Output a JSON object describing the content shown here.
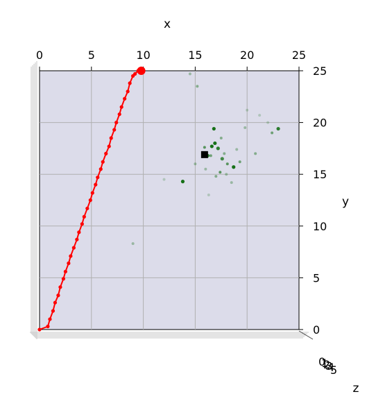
{
  "chart_data": {
    "type": "scatter",
    "projection": "3d",
    "view": "top-down (looking along z)",
    "xlabel": "x",
    "ylabel": "y",
    "zlabel": "z",
    "xlim": [
      0,
      25
    ],
    "ylim": [
      0,
      25
    ],
    "xticks": [
      0,
      5,
      10,
      15,
      20,
      25
    ],
    "yticks": [
      0,
      5,
      10,
      15,
      20,
      25
    ],
    "grid": true,
    "pane_color": "#dcdcea",
    "series": [
      {
        "type": "line",
        "color": "#ff0000",
        "x": [
          0.0,
          0.8,
          1.0,
          1.3,
          1.5,
          1.8,
          2.0,
          2.3,
          2.5,
          2.8,
          3.0,
          3.3,
          3.6,
          3.8,
          4.1,
          4.3,
          4.6,
          4.9,
          5.1,
          5.4,
          5.6,
          5.9,
          6.1,
          6.4,
          6.7,
          6.9,
          7.2,
          7.4,
          7.7,
          7.9,
          8.2,
          8.5,
          8.7,
          9.0,
          9.2,
          9.5
        ],
        "y": [
          0.0,
          0.3,
          1.0,
          1.8,
          2.6,
          3.3,
          4.1,
          4.9,
          5.6,
          6.4,
          7.1,
          7.9,
          8.7,
          9.4,
          10.2,
          10.9,
          11.7,
          12.5,
          13.2,
          14.0,
          14.7,
          15.5,
          16.2,
          17.0,
          17.7,
          18.5,
          19.3,
          20.0,
          20.8,
          21.5,
          22.3,
          23.0,
          23.8,
          24.5,
          24.7,
          25.0
        ]
      },
      {
        "type": "scatter",
        "color": "#006400",
        "x": [
          16.8,
          16.6,
          17.2,
          15.9,
          16.9,
          17.6,
          18.1,
          18.7,
          19.3,
          17.4,
          20.8,
          22.4,
          23.0,
          15.2,
          14.5,
          16.2,
          13.8,
          9.0,
          17.0,
          18.0,
          17.5,
          16.5,
          19.0,
          15.0,
          12.0,
          20.0,
          21.2,
          22.0,
          19.8,
          18.5,
          16.0,
          17.8,
          16.3
        ],
        "y": [
          19.4,
          17.7,
          17.5,
          17.6,
          18.0,
          16.5,
          16.0,
          15.7,
          16.2,
          15.2,
          17.0,
          19.0,
          19.4,
          23.5,
          24.7,
          16.8,
          14.3,
          8.3,
          14.8,
          15.0,
          18.5,
          16.8,
          17.4,
          16.0,
          14.5,
          21.2,
          20.7,
          20.0,
          19.5,
          14.2,
          15.5,
          17.0,
          13.0
        ],
        "alpha": [
          0.9,
          0.9,
          0.8,
          0.6,
          0.9,
          0.7,
          0.6,
          0.9,
          0.5,
          0.6,
          0.4,
          0.5,
          0.8,
          0.4,
          0.3,
          0.8,
          0.9,
          0.3,
          0.4,
          0.3,
          0.4,
          0.5,
          0.3,
          0.3,
          0.2,
          0.2,
          0.2,
          0.2,
          0.3,
          0.3,
          0.3,
          0.4,
          0.2
        ]
      },
      {
        "type": "marker",
        "color": "#000000",
        "x": [
          15.9
        ],
        "y": [
          16.9
        ]
      }
    ],
    "endpoint_marker": {
      "color": "#ff0000",
      "x": 9.8,
      "y": 25.0
    }
  }
}
